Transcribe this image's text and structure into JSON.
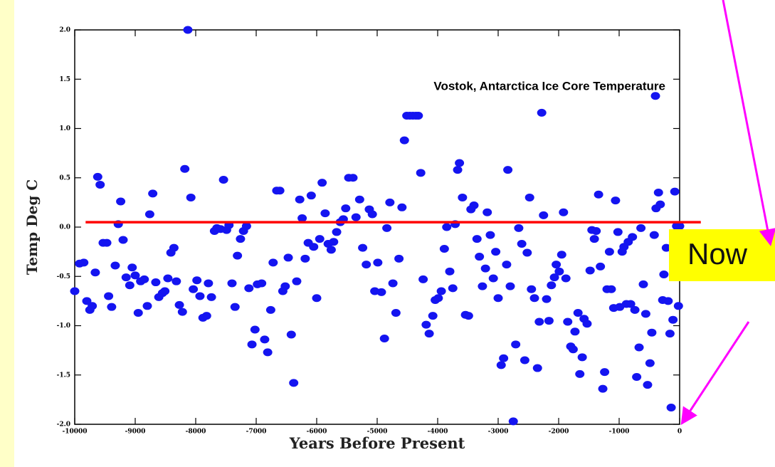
{
  "chart_data": {
    "type": "line",
    "annotations": [
      {
        "text": "Vostok, Antarctica Ice Core Temperature"
      },
      {
        "text": "Now"
      }
    ],
    "xlabel": "Years Before Present",
    "ylabel": "Temp Deg C",
    "color": "#1414f0",
    "x": [
      -10000,
      -9920,
      -9850,
      -9800,
      -9750,
      -9710,
      -9660,
      -9620,
      -9580,
      -9530,
      -9470,
      -9440,
      -9390,
      -9330,
      -9280,
      -9240,
      -9200,
      -9150,
      -9090,
      -9050,
      -9000,
      -8950,
      -8910,
      -8850,
      -8800,
      -8760,
      -8710,
      -8660,
      -8610,
      -8550,
      -8510,
      -8460,
      -8410,
      -8360,
      -8320,
      -8270,
      -8220,
      -8180,
      -8130,
      -8080,
      -8040,
      -7980,
      -7930,
      -7880,
      -7820,
      -7790,
      -7740,
      -7690,
      -7650,
      -7590,
      -7540,
      -7490,
      -7450,
      -7400,
      -7350,
      -7310,
      -7260,
      -7210,
      -7160,
      -7120,
      -7070,
      -7020,
      -6980,
      -6910,
      -6860,
      -6810,
      -6760,
      -6720,
      -6660,
      -6610,
      -6560,
      -6520,
      -6470,
      -6420,
      -6380,
      -6330,
      -6280,
      -6240,
      -6190,
      -6140,
      -6090,
      -6050,
      -6000,
      -5950,
      -5910,
      -5860,
      -5810,
      -5760,
      -5720,
      -5670,
      -5610,
      -5560,
      -5520,
      -5470,
      -5400,
      -5350,
      -5290,
      -5240,
      -5180,
      -5130,
      -5080,
      -5040,
      -4990,
      -4930,
      -4880,
      -4840,
      -4790,
      -4740,
      -4690,
      -4640,
      -4590,
      -4550,
      -4510,
      -4460,
      -4410,
      -4360,
      -4320,
      -4280,
      -4240,
      -4190,
      -4140,
      -4080,
      -4040,
      -3990,
      -3940,
      -3890,
      -3850,
      -3800,
      -3750,
      -3710,
      -3670,
      -3640,
      -3590,
      -3540,
      -3490,
      -3450,
      -3400,
      -3350,
      -3310,
      -3260,
      -3210,
      -3180,
      -3130,
      -3080,
      -3040,
      -3000,
      -2950,
      -2910,
      -2860,
      -2840,
      -2800,
      -2750,
      -2710,
      -2660,
      -2610,
      -2560,
      -2520,
      -2480,
      -2450,
      -2400,
      -2350,
      -2320,
      -2280,
      -2250,
      -2200,
      -2160,
      -2120,
      -2070,
      -2040,
      -1990,
      -1950,
      -1920,
      -1880,
      -1850,
      -1800,
      -1760,
      -1730,
      -1680,
      -1650,
      -1610,
      -1580,
      -1530,
      -1480,
      -1450,
      -1410,
      -1380,
      -1340,
      -1310,
      -1270,
      -1240,
      -1200,
      -1160,
      -1130,
      -1090,
      -1060,
      -1020,
      -990,
      -950,
      -920,
      -880,
      -850,
      -810,
      -780,
      -740,
      -710,
      -670,
      -640,
      -600,
      -560,
      -530,
      -490,
      -460,
      -420,
      -400,
      -390,
      -350,
      -320,
      -280,
      -260,
      -220,
      -190,
      -160,
      -140,
      -110,
      -80,
      -50,
      -20,
      0
    ],
    "values": [
      -0.65,
      -0.37,
      -0.36,
      -0.75,
      -0.84,
      -0.8,
      -0.46,
      0.51,
      0.43,
      -0.16,
      -0.16,
      -0.7,
      -0.81,
      -0.39,
      0.03,
      0.26,
      -0.13,
      -0.51,
      -0.59,
      -0.41,
      -0.49,
      -0.87,
      -0.55,
      -0.53,
      -0.8,
      0.13,
      0.34,
      -0.56,
      -0.71,
      -0.67,
      -0.65,
      -0.52,
      -0.26,
      -0.21,
      -0.55,
      -0.79,
      -0.86,
      0.59,
      2.0,
      0.3,
      -0.63,
      -0.54,
      -0.7,
      -0.92,
      -0.9,
      -0.57,
      -0.71,
      -0.04,
      -0.01,
      -0.02,
      0.48,
      -0.03,
      0.02,
      -0.57,
      -0.81,
      -0.29,
      -0.12,
      -0.04,
      0.01,
      -0.62,
      -1.19,
      -1.04,
      -0.58,
      -0.57,
      -1.14,
      -1.27,
      -0.84,
      -0.36,
      0.37,
      0.37,
      -0.65,
      -0.6,
      -0.31,
      -1.09,
      -1.58,
      -0.55,
      0.28,
      0.09,
      -0.32,
      -0.16,
      0.32,
      -0.2,
      -0.72,
      -0.12,
      0.45,
      0.14,
      -0.17,
      -0.23,
      -0.15,
      -0.05,
      0.05,
      0.08,
      0.19,
      0.5,
      0.5,
      0.1,
      0.28,
      -0.21,
      -0.38,
      0.18,
      0.13,
      -0.65,
      -0.36,
      -0.66,
      -1.13,
      -0.01,
      0.25,
      -0.57,
      -0.87,
      -0.32,
      0.2,
      0.88,
      1.13,
      1.13,
      1.13,
      1.13,
      1.13,
      0.55,
      -0.53,
      -0.99,
      -1.08,
      -0.9,
      -0.74,
      -0.72,
      -0.65,
      -0.22,
      0.0,
      -0.45,
      -0.62,
      0.03,
      0.58,
      0.65,
      0.3,
      -0.89,
      -0.9,
      0.18,
      0.22,
      -0.12,
      -0.3,
      -0.6,
      -0.42,
      0.15,
      -0.08,
      -0.52,
      -0.25,
      -0.72,
      -1.4,
      -1.33,
      -0.38,
      0.58,
      -0.6,
      -1.97,
      -1.19,
      -0.01,
      -0.17,
      -1.35,
      -0.26,
      0.3,
      -0.63,
      -0.72,
      -1.43,
      -0.96,
      1.16,
      0.12,
      -0.73,
      -0.95,
      -0.59,
      -0.51,
      -0.38,
      -0.45,
      -0.28,
      0.15,
      -0.52,
      -0.96,
      -1.21,
      -1.24,
      -1.06,
      -0.87,
      -1.49,
      -1.32,
      -0.93,
      -0.98,
      -0.44,
      -0.03,
      -0.12,
      -0.04,
      0.33,
      -0.4,
      -1.64,
      -1.47,
      -0.63,
      -0.25,
      -0.63,
      -0.82,
      0.27,
      -0.05,
      -0.81,
      -0.25,
      -0.2,
      -0.78,
      -0.15,
      -0.78,
      -0.1,
      -0.84,
      -1.52,
      -1.22,
      -0.01,
      -0.58,
      -0.88,
      -1.6,
      -1.38,
      -1.07,
      -0.08,
      1.33,
      0.19,
      0.35,
      0.23,
      -0.74,
      -0.48,
      -0.21,
      -0.75,
      -1.08,
      -1.83,
      -0.94,
      0.36,
      0.01,
      -0.8,
      0.01
    ],
    "reference_line": {
      "x": [
        -9820,
        350
      ],
      "y": 0.05,
      "color": "#ff0000"
    },
    "xlim": [
      -10000,
      0
    ],
    "ylim": [
      -2,
      2
    ],
    "xticks": [
      -10000,
      -9000,
      -8000,
      -7000,
      -6000,
      -5000,
      -4000,
      -3000,
      -2000,
      -1000,
      0
    ],
    "yticks": [
      {
        "value": -2,
        "label": "-2.0"
      },
      -1.5,
      {
        "value": -1,
        "label": "-1.0"
      },
      -0.5,
      {
        "value": 0,
        "label": "0.0"
      },
      0.5,
      {
        "value": 1,
        "label": "1.0"
      },
      1.5,
      {
        "value": 2,
        "label": "2.0"
      }
    ]
  }
}
